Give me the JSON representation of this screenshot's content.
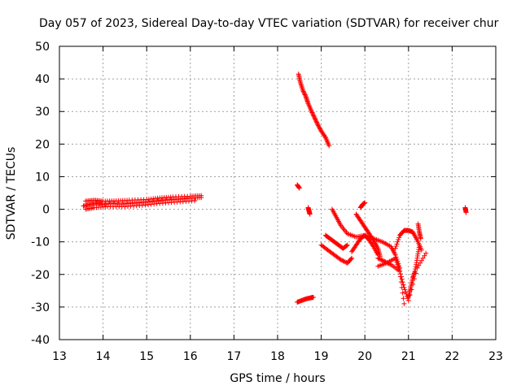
{
  "chart_data": {
    "type": "scatter",
    "title": "Day 057 of 2023, Sidereal Day-to-day VTEC variation (SDTVAR) for receiver chur",
    "xlabel": "GPS time / hours",
    "ylabel": "SDTVAR / TECUs",
    "xlim": [
      13,
      23
    ],
    "ylim": [
      -40,
      50
    ],
    "xticks": [
      13,
      14,
      15,
      16,
      17,
      18,
      19,
      20,
      21,
      22,
      23
    ],
    "yticks": [
      -40,
      -30,
      -20,
      -10,
      0,
      10,
      20,
      30,
      40,
      50
    ],
    "grid": true,
    "marker": "+",
    "color": "#ff0000",
    "series": [
      {
        "segments": [
          {
            "x": [
              13.55,
              13.7,
              13.85,
              14.0,
              14.2,
              14.4,
              14.6,
              14.8,
              15.0,
              15.2,
              15.4,
              15.6,
              15.8,
              16.0,
              16.25
            ],
            "y": [
              1.0,
              1.5,
              1.8,
              1.5,
              1.8,
              1.6,
              1.8,
              2.0,
              2.2,
              2.5,
              2.8,
              3.0,
              3.2,
              3.4,
              3.6
            ]
          },
          {
            "x": [
              13.6,
              13.8,
              14.0,
              14.3,
              14.6,
              15.0,
              15.3,
              15.6,
              16.0,
              16.25
            ],
            "y": [
              2.5,
              2.8,
              2.5,
              2.6,
              2.8,
              3.0,
              3.5,
              3.8,
              4.0,
              4.2
            ]
          },
          {
            "x": [
              13.6,
              13.8,
              14.1,
              14.5,
              14.9,
              15.3,
              15.7,
              16.1
            ],
            "y": [
              0.0,
              0.5,
              0.8,
              0.8,
              1.2,
              1.8,
              2.2,
              2.6
            ]
          },
          {
            "x": [
              18.48,
              18.52,
              18.58,
              18.65,
              18.7,
              18.78,
              18.85,
              18.92,
              19.0,
              19.1,
              19.18
            ],
            "y": [
              41.5,
              39.0,
              36.5,
              34.5,
              32.5,
              30.0,
              28.0,
              26.0,
              24.0,
              22.0,
              19.5
            ]
          },
          {
            "x": [
              18.45,
              18.5
            ],
            "y": [
              7.5,
              6.5
            ]
          },
          {
            "x": [
              18.7,
              18.72,
              18.74
            ],
            "y": [
              0.5,
              -0.5,
              -1.5
            ]
          },
          {
            "x": [
              18.45,
              18.55,
              18.65,
              18.75,
              18.82
            ],
            "y": [
              -28.5,
              -28.0,
              -27.5,
              -27.2,
              -27.0
            ]
          },
          {
            "x": [
              19.0,
              19.15,
              19.3,
              19.45,
              19.6,
              19.7
            ],
            "y": [
              -11.0,
              -12.5,
              -14.0,
              -15.5,
              -16.5,
              -15.0
            ]
          },
          {
            "x": [
              19.7,
              19.8,
              19.9,
              20.0,
              20.1,
              20.2,
              20.3
            ],
            "y": [
              -13.0,
              -11.0,
              -9.0,
              -8.0,
              -9.5,
              -11.5,
              -14.0
            ]
          },
          {
            "x": [
              19.1,
              19.2,
              19.3,
              19.4,
              19.5,
              19.6
            ],
            "y": [
              -8.0,
              -9.0,
              -10.0,
              -11.0,
              -12.0,
              -11.0
            ]
          },
          {
            "x": [
              19.25,
              19.35,
              19.45,
              19.6,
              19.8,
              20.0,
              20.2,
              20.4,
              20.6,
              20.7,
              20.8
            ],
            "y": [
              0.0,
              -2.5,
              -5.0,
              -7.5,
              -8.5,
              -8.0,
              -9.0,
              -10.0,
              -11.5,
              -14.0,
              -18.0
            ]
          },
          {
            "x": [
              20.3,
              20.45,
              20.6,
              20.8,
              20.9,
              21.0,
              21.2,
              21.4
            ],
            "y": [
              -15.0,
              -16.0,
              -17.0,
              -19.0,
              -24.0,
              -28.0,
              -18.0,
              -13.5
            ]
          },
          {
            "x": [
              19.8,
              19.9,
              20.0,
              20.1,
              20.2,
              20.3,
              20.35
            ],
            "y": [
              -1.5,
              -3.5,
              -5.5,
              -7.5,
              -9.5,
              -12.0,
              -14.5
            ]
          },
          {
            "x": [
              19.9,
              19.95,
              20.0
            ],
            "y": [
              0.5,
              1.5,
              2.0
            ]
          },
          {
            "x": [
              20.3,
              20.5,
              20.7,
              20.8,
              20.9
            ],
            "y": [
              -17.5,
              -16.5,
              -15.0,
              -19.0,
              -29.0
            ]
          },
          {
            "x": [
              20.7,
              20.8,
              20.9,
              21.0,
              21.1,
              21.2,
              21.3
            ],
            "y": [
              -12.0,
              -8.0,
              -6.5,
              -6.5,
              -7.0,
              -9.5,
              -12.5
            ]
          },
          {
            "x": [
              21.0,
              21.05,
              21.1,
              21.15,
              21.2,
              21.25
            ],
            "y": [
              -27.0,
              -24.0,
              -21.0,
              -19.0,
              -15.0,
              -11.0
            ]
          },
          {
            "x": [
              21.22,
              21.25,
              21.28
            ],
            "y": [
              -4.5,
              -7.0,
              -9.0
            ]
          },
          {
            "x": [
              22.3,
              22.32
            ],
            "y": [
              0.5,
              -1.0
            ]
          }
        ]
      }
    ]
  }
}
